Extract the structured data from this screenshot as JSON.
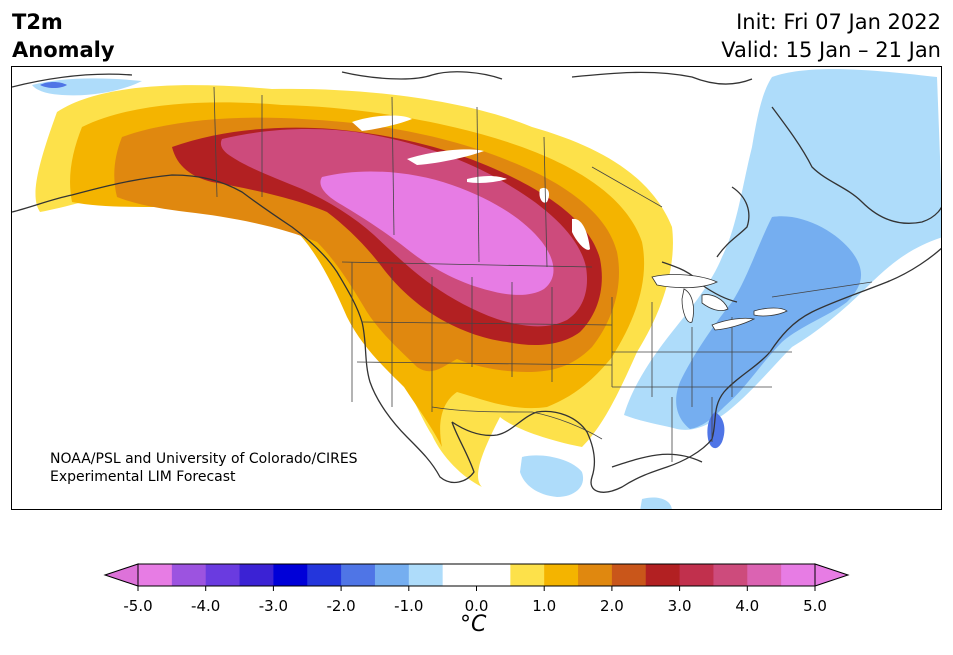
{
  "header": {
    "title_line1": "T2m",
    "title_line2": "Anomaly",
    "init_text": "Init: Fri 07 Jan 2022",
    "valid_text": "Valid: 15 Jan – 21 Jan"
  },
  "credit": {
    "line1": "NOAA/PSL and University of Colorado/CIRES",
    "line2": "Experimental LIM Forecast"
  },
  "colorbar": {
    "unit_label": "°C",
    "tick_labels": [
      "-5.0",
      "-4.0",
      "-3.0",
      "-2.0",
      "-1.0",
      "0.0",
      "1.0",
      "2.0",
      "3.0",
      "4.0",
      "5.0"
    ],
    "colors": [
      "#e77ce4",
      "#9c53e0",
      "#6a3be0",
      "#3b22d4",
      "#0000d8",
      "#2436dc",
      "#4f75e6",
      "#75aef0",
      "#aedcfa",
      "#ffffff",
      "#ffffff",
      "#fde14a",
      "#f4b400",
      "#e0880f",
      "#c9561a",
      "#b22022",
      "#c1304d",
      "#cd4b7c",
      "#db63b2",
      "#e77ce4"
    ],
    "min_color": "#dd72d9",
    "max_color": "#e77ce4"
  },
  "palette": {
    "yellow": "#fde14a",
    "orange1": "#f4b400",
    "orange2": "#e0880f",
    "red1": "#b22022",
    "rose": "#cd4b7c",
    "pink": "#e77ce4",
    "lightblue": "#aedcfa",
    "blue1": "#75aef0",
    "blue2": "#4f75e6"
  }
}
